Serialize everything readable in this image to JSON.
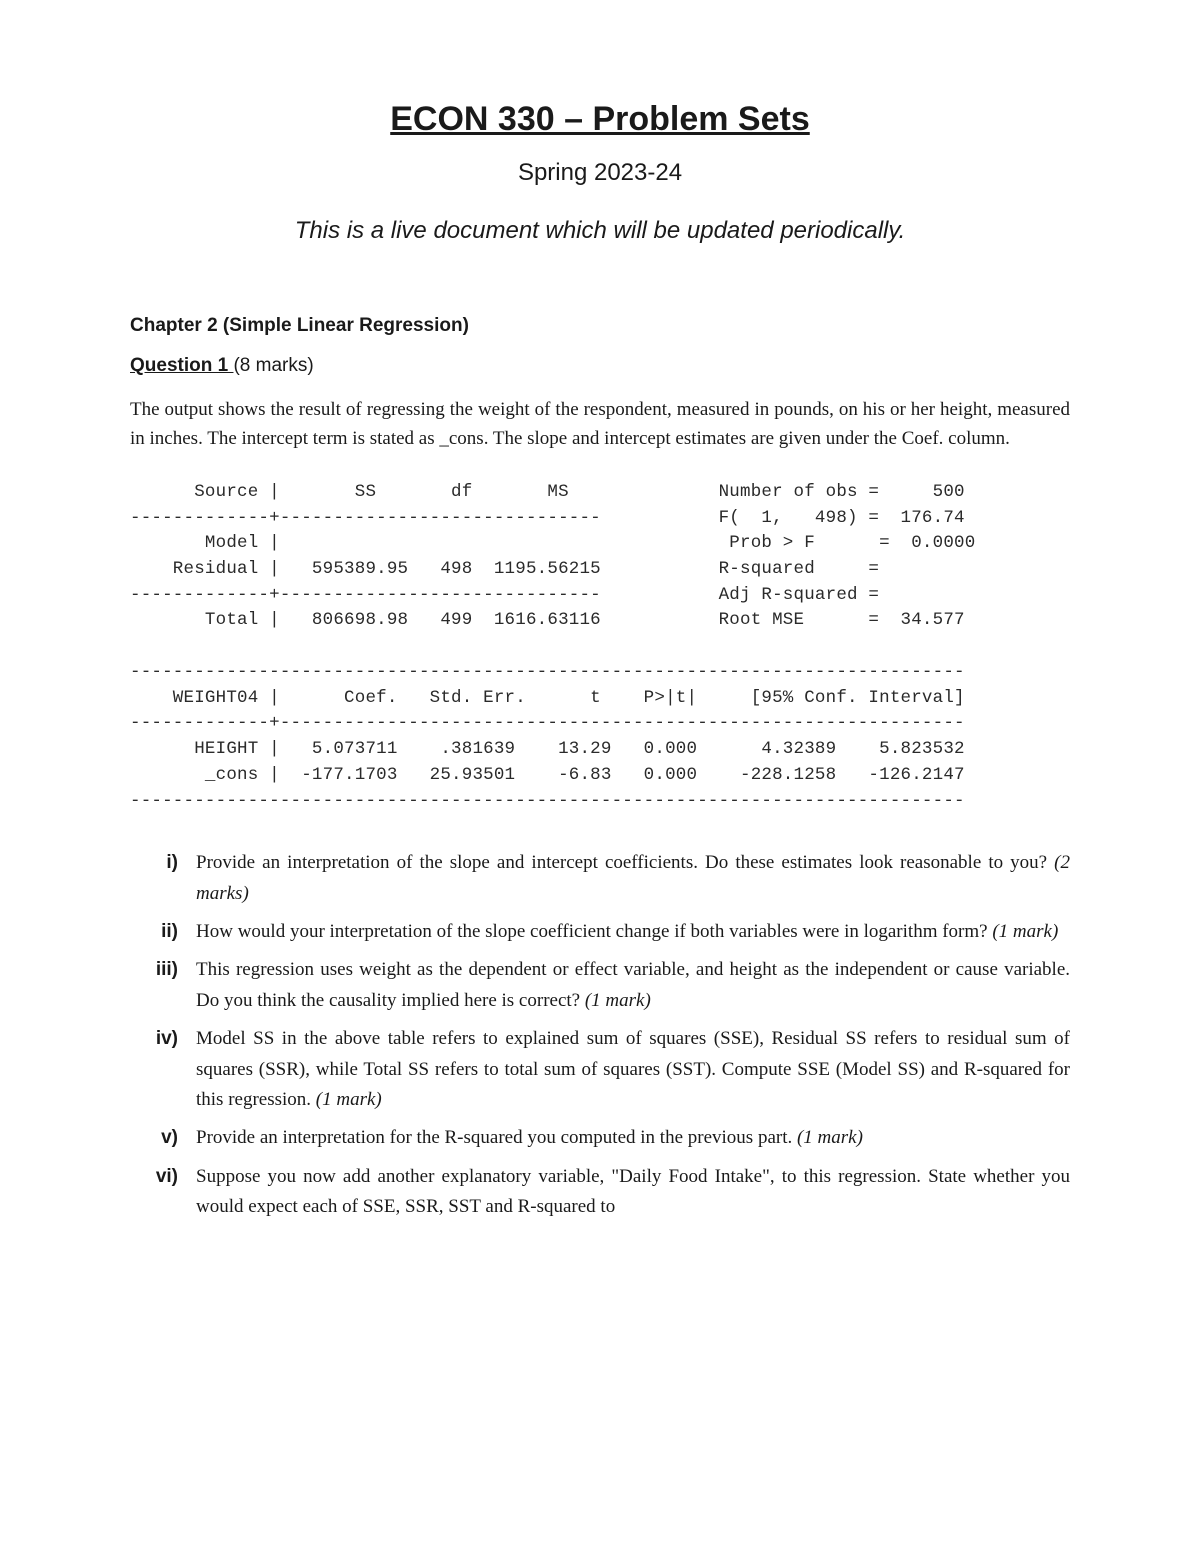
{
  "header": {
    "title": "ECON 330 – Problem Sets",
    "term": "Spring 2023-24",
    "notice": "This is a live document which will be updated periodically."
  },
  "chapter": "Chapter 2 (Simple Linear Regression)",
  "question": {
    "label": "Question 1 ",
    "marks": "(8 marks)",
    "prompt": "The output shows the result of regressing the weight of the respondent, measured in pounds, on his or her height, measured in inches. The intercept term is stated as _cons. The slope and intercept estimates are given under the Coef. column."
  },
  "stata": {
    "anova_header": "      Source |       SS       df       MS              Number of obs =     500",
    "line2": "-------------+------------------------------           F(  1,   498) =  176.74",
    "model_row": "       Model |                                          Prob > F      =  0.0000",
    "residual_row": "    Residual |   595389.95   498  1195.56215           R-squared     =  ",
    "line5": "-------------+------------------------------           Adj R-squared =  ",
    "total_row": "       Total |   806698.98   499  1616.63116           Root MSE      =  34.577",
    "blank": "",
    "rule_top": "------------------------------------------------------------------------------",
    "coef_header": "    WEIGHT04 |      Coef.   Std. Err.      t    P>|t|     [95% Conf. Interval]",
    "rule_mid": "-------------+----------------------------------------------------------------",
    "height_row": "      HEIGHT |   5.073711    .381639    13.29   0.000      4.32389    5.823532",
    "cons_row": "       _cons |  -177.1703   25.93501    -6.83   0.000    -228.1258   -126.2147",
    "rule_bot": "------------------------------------------------------------------------------"
  },
  "subparts": [
    {
      "marker": "i)",
      "text": "Provide an interpretation of the slope and intercept coefficients. Do these estimates look reasonable to you? ",
      "marks": "(2 marks)"
    },
    {
      "marker": "ii)",
      "text": "How would your interpretation of the slope coefficient change if both variables were in logarithm form? ",
      "marks": "(1 mark)"
    },
    {
      "marker": "iii)",
      "text": "This regression uses weight as the dependent or effect variable, and height as the independent or cause variable. Do you think the causality implied here is correct? ",
      "marks": "(1 mark)"
    },
    {
      "marker": "iv)",
      "text": "Model SS in the above table refers to explained sum of squares (SSE), Residual SS refers to residual sum of squares (SSR), while Total SS refers to total sum of squares (SST). Compute SSE (Model SS) and R-squared for this regression. ",
      "marks": "(1 mark)"
    },
    {
      "marker": "v)",
      "text": "Provide an interpretation for the R-squared you computed in the previous part. ",
      "marks": "(1 mark)"
    },
    {
      "marker": "vi)",
      "text": "Suppose you now add another explanatory variable, \"Daily Food Intake\", to this regression. State whether you would expect each of SSE, SSR, SST and R-squared to",
      "marks": ""
    }
  ]
}
